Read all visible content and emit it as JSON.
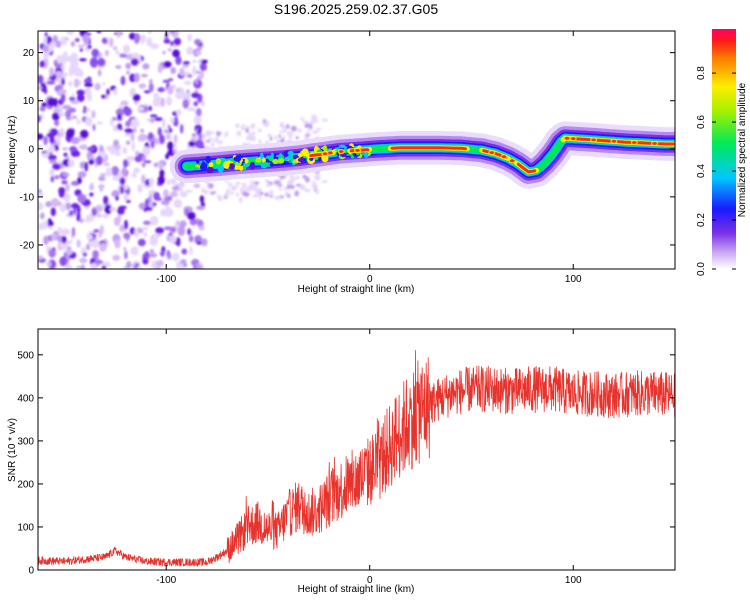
{
  "title": "S196.2025.259.02.37.G05",
  "chart_data": [
    {
      "type": "heatmap",
      "title": "S196.2025.259.02.37.G05",
      "xlabel": "Height of straight line (km)",
      "ylabel": "Frequency (Hz)",
      "xlim": [
        -163,
        150
      ],
      "ylim": [
        -25,
        24.5
      ],
      "xticks": [
        "-100",
        "0",
        "100"
      ],
      "yticks": [
        "-20",
        "-10",
        "0",
        "10",
        "20"
      ],
      "colorbar": {
        "label": "Normalized spectral amplitude",
        "range": [
          0,
          0.98
        ],
        "ticks": [
          "0.0",
          "0.2",
          "0.4",
          "0.6",
          "0.8"
        ]
      },
      "ridge": {
        "description": "dominant frequency track vs height",
        "x": [
          -95,
          -85,
          -75,
          -65,
          -55,
          -45,
          -35,
          -25,
          -15,
          -5,
          5,
          15,
          25,
          35,
          45,
          55,
          62,
          68,
          73,
          78,
          82,
          86,
          90,
          94,
          96,
          105,
          115,
          125,
          135,
          145,
          150
        ],
        "y": [
          -3.8,
          -3.5,
          -3.2,
          -2.8,
          -2.5,
          -2.2,
          -1.8,
          -1.2,
          -0.6,
          -0.3,
          0.0,
          0.2,
          0.2,
          0.2,
          0.1,
          -0.3,
          -1.0,
          -2.0,
          -3.2,
          -4.8,
          -4.5,
          -3.0,
          -1.0,
          1.5,
          2.2,
          2.0,
          1.7,
          1.4,
          1.2,
          1.0,
          1.0
        ]
      }
    },
    {
      "type": "line",
      "xlabel": "Height of straight line (km)",
      "ylabel": "SNR (10 * v/v)",
      "xlim": [
        -163,
        150
      ],
      "ylim": [
        0,
        560
      ],
      "xticks": [
        "-100",
        "0",
        "100"
      ],
      "yticks": [
        "0",
        "100",
        "200",
        "300",
        "400",
        "500"
      ],
      "series": [
        {
          "name": "SNR",
          "color": "#e8322c",
          "x": [
            -163,
            -150,
            -140,
            -130,
            -125,
            -120,
            -110,
            -100,
            -90,
            -80,
            -75,
            -70,
            -65,
            -60,
            -55,
            -50,
            -45,
            -40,
            -35,
            -30,
            -25,
            -20,
            -15,
            -10,
            -5,
            0,
            5,
            10,
            15,
            20,
            25,
            30,
            35,
            40,
            50,
            60,
            70,
            80,
            90,
            100,
            110,
            120,
            130,
            140,
            150
          ],
          "values": [
            22,
            20,
            25,
            30,
            45,
            30,
            20,
            18,
            18,
            18,
            30,
            45,
            70,
            100,
            110,
            95,
            90,
            130,
            150,
            130,
            140,
            165,
            185,
            200,
            210,
            230,
            250,
            290,
            320,
            350,
            370,
            385,
            400,
            410,
            420,
            420,
            415,
            420,
            420,
            410,
            410,
            405,
            410,
            410,
            405
          ]
        }
      ]
    }
  ]
}
